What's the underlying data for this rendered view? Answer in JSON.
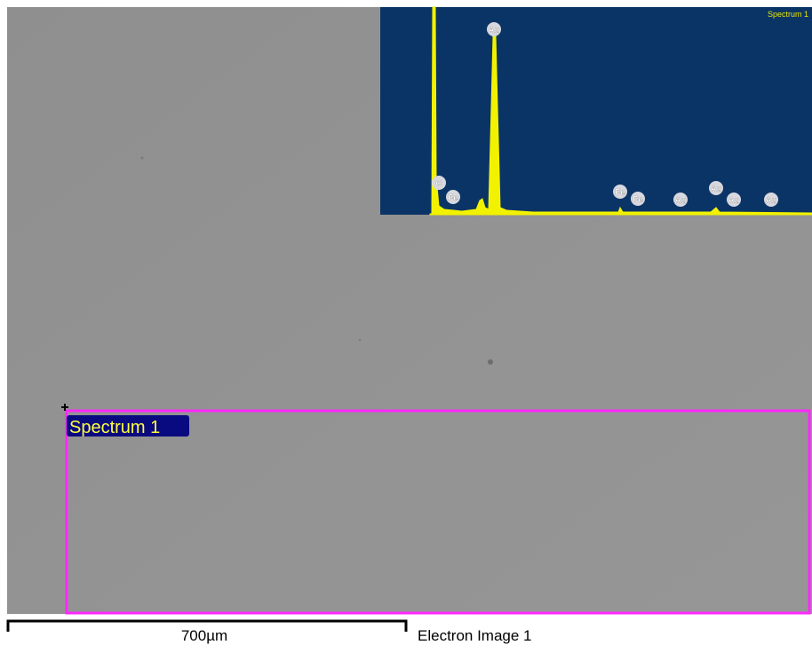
{
  "image": {
    "region_label": "Spectrum 1",
    "scale_bar": "700µm",
    "caption": "Electron Image 1"
  },
  "spectrum": {
    "title": "Spectrum 1",
    "peaks": [
      "Au",
      "C",
      "Fe",
      "Fe",
      "Fe",
      "Au",
      "Au",
      "Au",
      "Au"
    ]
  }
}
